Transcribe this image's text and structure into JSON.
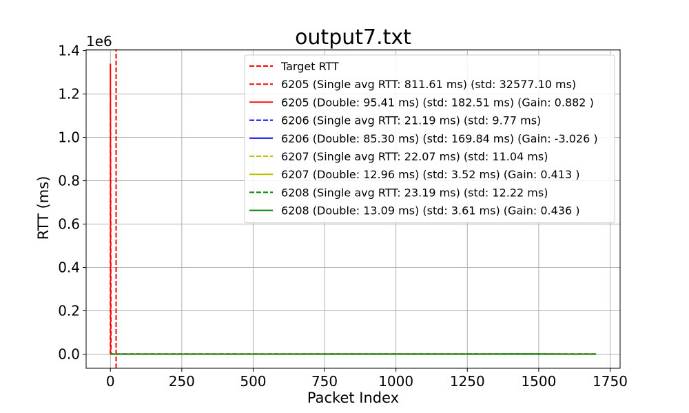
{
  "chart_data": {
    "type": "line",
    "title": "output7.txt",
    "xlabel": "Packet Index",
    "ylabel": "RTT (ms)",
    "y_scale_label": "1e6",
    "xlim": [
      -85,
      1785
    ],
    "ylim": [
      -65000,
      1405000
    ],
    "xticks": [
      0,
      250,
      500,
      750,
      1000,
      1250,
      1500,
      1750
    ],
    "xtick_labels": [
      "0",
      "250",
      "500",
      "750",
      "1000",
      "1250",
      "1500",
      "1750"
    ],
    "yticks": [
      0,
      200000,
      400000,
      600000,
      800000,
      1000000,
      1200000,
      1400000
    ],
    "ytick_labels": [
      "0.0",
      "0.2",
      "0.4",
      "0.6",
      "0.8",
      "1.0",
      "1.2",
      "1.4"
    ],
    "grid": true,
    "legend_position": "top-right",
    "series": [
      {
        "name": "Target RTT",
        "color": "#ff0000",
        "dash": "dashed",
        "x": [
          20,
          20
        ],
        "y": [
          -65000,
          1405000
        ]
      },
      {
        "name": "6205 (Single avg RTT: 811.61 ms) (std: 32577.10 ms)",
        "color": "#ff0000",
        "dash": "dashed",
        "x": [
          0,
          0,
          2,
          3,
          1700
        ],
        "y": [
          1000,
          1340000,
          1000,
          800,
          800
        ]
      },
      {
        "name": "6205 (Double: 95.41 ms) (std: 182.51 ms) (Gain: 0.882 )",
        "color": "#ff0000",
        "dash": "solid",
        "x": [
          0,
          1700
        ],
        "y": [
          100,
          100
        ]
      },
      {
        "name": "6206 (Single avg RTT: 21.19 ms) (std: 9.77 ms)",
        "color": "#0000ff",
        "dash": "dashed",
        "x": [
          0,
          1700
        ],
        "y": [
          21,
          21
        ]
      },
      {
        "name": "6206 (Double: 85.30 ms) (std: 169.84 ms) (Gain: -3.026 )",
        "color": "#0000ff",
        "dash": "solid",
        "x": [
          0,
          1700
        ],
        "y": [
          85,
          85
        ]
      },
      {
        "name": "6207 (Single avg RTT: 22.07 ms) (std: 11.04 ms)",
        "color": "#bfbf00",
        "dash": "dashed",
        "x": [
          0,
          1700
        ],
        "y": [
          22,
          22
        ]
      },
      {
        "name": "6207 (Double: 12.96 ms) (std: 3.52 ms) (Gain: 0.413 )",
        "color": "#bfbf00",
        "dash": "solid",
        "x": [
          0,
          1700
        ],
        "y": [
          13,
          13
        ]
      },
      {
        "name": "6208 (Single avg RTT: 23.19 ms) (std: 12.22 ms)",
        "color": "#008000",
        "dash": "dashed",
        "x": [
          0,
          1700
        ],
        "y": [
          23,
          23
        ]
      },
      {
        "name": "6208 (Double: 13.09 ms) (std: 3.61 ms) (Gain: 0.436 )",
        "color": "#008000",
        "dash": "solid",
        "x": [
          0,
          1360,
          1420,
          1480,
          1540,
          1600,
          1700
        ],
        "y": [
          13,
          500,
          900,
          800,
          600,
          200,
          13
        ]
      }
    ]
  }
}
